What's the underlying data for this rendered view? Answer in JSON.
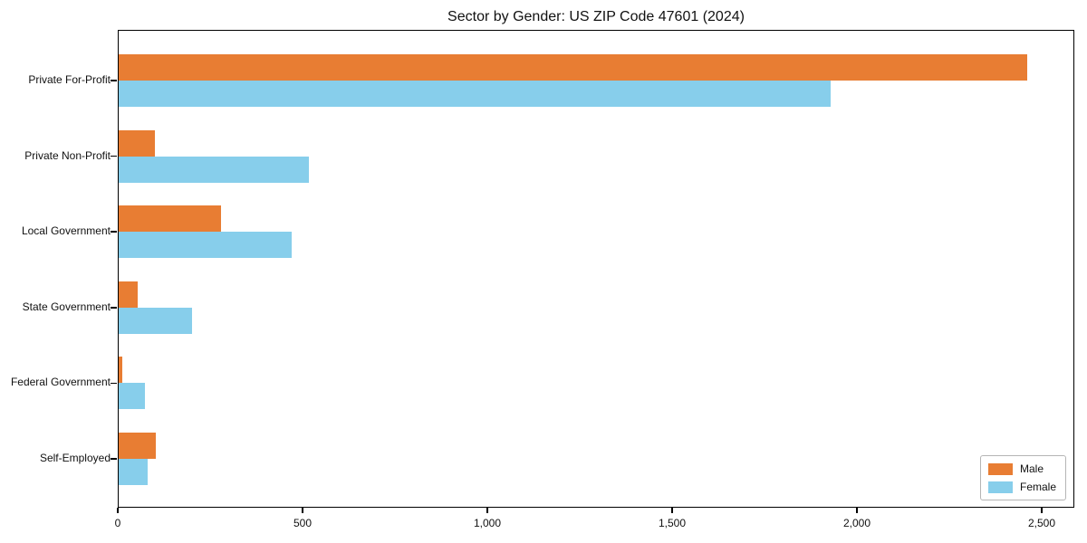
{
  "chart_data": {
    "type": "bar",
    "orientation": "horizontal",
    "title": "Sector by Gender: US ZIP Code 47601 (2024)",
    "categories": [
      "Private For-Profit",
      "Private Non-Profit",
      "Local Government",
      "State Government",
      "Federal Government",
      "Self-Employed"
    ],
    "series": [
      {
        "name": "Male",
        "color": "#e87d33",
        "values": [
          2460,
          100,
          280,
          53,
          12,
          104
        ]
      },
      {
        "name": "Female",
        "color": "#87ceeb",
        "values": [
          1930,
          516,
          470,
          200,
          73,
          82
        ]
      }
    ],
    "xlabel": "",
    "ylabel": "",
    "xlim": [
      0,
      2588
    ],
    "xticks": [
      0,
      500,
      1000,
      1500,
      2000,
      2500
    ],
    "xtick_labels": [
      "0",
      "500",
      "1,000",
      "1,500",
      "2,000",
      "2,500"
    ],
    "grid": false,
    "legend": {
      "position": "lower-right",
      "labels": [
        "Male",
        "Female"
      ]
    },
    "colors": {
      "spine": "#000000",
      "background": "#ffffff",
      "text": "#111111"
    }
  }
}
